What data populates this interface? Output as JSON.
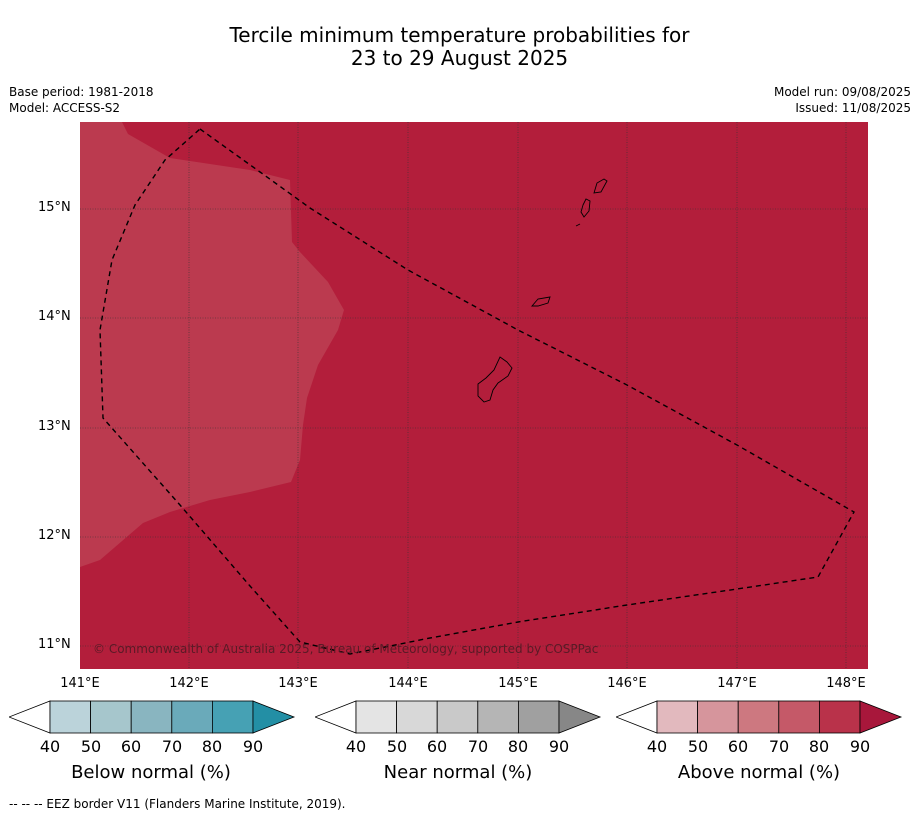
{
  "title_line1": "Tercile minimum temperature probabilities for",
  "title_line2": "23 to 29 August 2025",
  "meta": {
    "base_period": "Base period: 1981-2018",
    "model": "Model: ACCESS-S2",
    "model_run": "Model run: 09/08/2025",
    "issued": "Issued: 11/08/2025"
  },
  "map": {
    "copyright": "© Commonwealth of Australia 2025, Bureau of Meteorology, supported by COSPPac",
    "lat_labels": [
      "15°N",
      "14°N",
      "13°N",
      "12°N",
      "11°N"
    ],
    "lon_labels": [
      "141°E",
      "142°E",
      "143°E",
      "144°E",
      "145°E",
      "146°E",
      "147°E",
      "148°E"
    ],
    "colors": {
      "above_80_90": "#b31e3b",
      "above_70_80": "#bb3a4f",
      "land_outline": "#000000",
      "eez_line": "#000000"
    }
  },
  "colorbars": [
    {
      "label": "Below normal (%)",
      "ticks": [
        "40",
        "50",
        "60",
        "70",
        "80",
        "90"
      ],
      "colors": [
        "#ffffff",
        "#bbd3da",
        "#a6c6cc",
        "#89b5c0",
        "#6aaaba",
        "#46a1b4",
        "#238fa5"
      ]
    },
    {
      "label": "Near normal (%)",
      "ticks": [
        "40",
        "50",
        "60",
        "70",
        "80",
        "90"
      ],
      "colors": [
        "#ffffff",
        "#e4e4e4",
        "#d8d8d8",
        "#c9c9c9",
        "#b5b5b5",
        "#a0a0a0",
        "#878787"
      ]
    },
    {
      "label": "Above normal (%)",
      "ticks": [
        "40",
        "50",
        "60",
        "70",
        "80",
        "90"
      ],
      "colors": [
        "#ffffff",
        "#e2b9be",
        "#d6959c",
        "#cd7880",
        "#c55968",
        "#b9324a",
        "#a8173b"
      ]
    }
  ],
  "legend": "--  --  -- EEZ border V11 (Flanders Marine Institute, 2019)."
}
